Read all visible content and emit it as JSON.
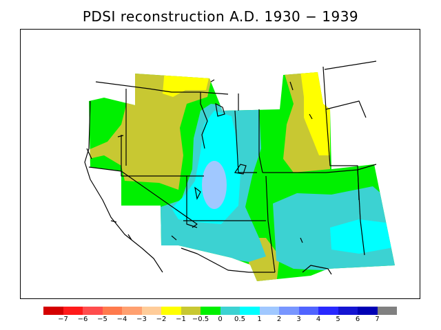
{
  "title": "PDSI reconstruction A.D. 1930 − 1939",
  "legend": {
    "colors": [
      "#d40000",
      "#ff1a1a",
      "#ff4d4d",
      "#ff7a4d",
      "#ffa070",
      "#ffcc99",
      "#ffff00",
      "#c8c832",
      "#00f000",
      "#3cd2d2",
      "#00ffff",
      "#a0c8ff",
      "#7896ff",
      "#5064ff",
      "#2828ff",
      "#1414d2",
      "#0000b4",
      "#808080"
    ],
    "labels": [
      "−7",
      "−6",
      "−5",
      "−4",
      "−3",
      "−2",
      "−1",
      "−0.5",
      "0",
      "0.5",
      "1",
      "2",
      "3",
      "4",
      "5",
      "6",
      "7"
    ]
  },
  "map_colors": {
    "olive": "#c8c832",
    "yellow": "#ffff00",
    "green": "#00f000",
    "teal": "#3cd2d2",
    "cyan": "#00ffff",
    "lightblue": "#a0c8ff"
  }
}
